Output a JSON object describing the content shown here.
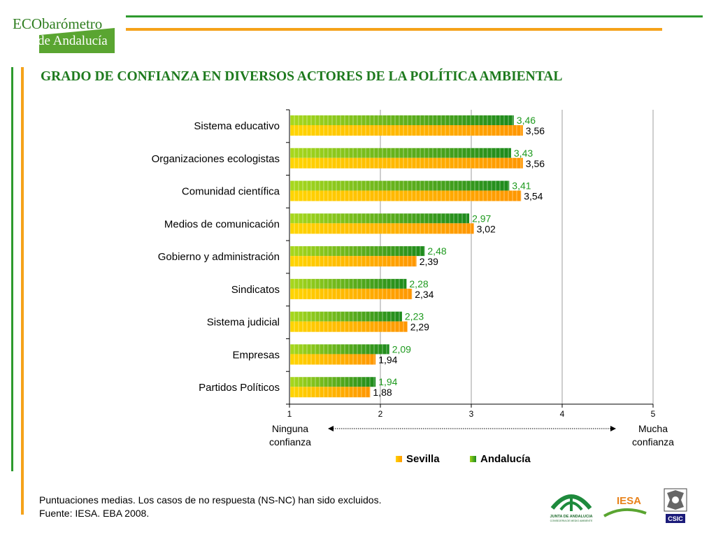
{
  "header": {
    "logo_line1_a": "ECO",
    "logo_line1_b": "barómetro",
    "logo_line2": "de Andalucía"
  },
  "chart_data": {
    "type": "bar",
    "orientation": "horizontal",
    "title": "GRADO DE CONFIANZA EN DIVERSOS ACTORES DE LA POLÍTICA AMBIENTAL",
    "categories": [
      "Sistema educativo",
      "Organizaciones ecologistas",
      "Comunidad científica",
      "Medios de comunicación",
      "Gobierno y administración",
      "Sindicatos",
      "Sistema judicial",
      "Empresas",
      "Partidos Políticos"
    ],
    "series": [
      {
        "name": "Andalucía",
        "color": "#2e9a2e",
        "values": [
          3.46,
          3.43,
          3.41,
          2.97,
          2.48,
          2.28,
          2.23,
          2.09,
          1.94
        ],
        "labels": [
          "3,46",
          "3,43",
          "3,41",
          "2,97",
          "2,48",
          "2,28",
          "2,23",
          "2,09",
          "1,94"
        ]
      },
      {
        "name": "Sevilla",
        "color": "#ffa500",
        "values": [
          3.56,
          3.56,
          3.54,
          3.02,
          2.39,
          2.34,
          2.29,
          1.94,
          1.88
        ],
        "labels": [
          "3,56",
          "3,56",
          "3,54",
          "3,02",
          "2,39",
          "2,34",
          "2,29",
          "1,94",
          "1,88"
        ]
      }
    ],
    "xlim": [
      1,
      5
    ],
    "xticks": [
      "1",
      "2",
      "3",
      "4",
      "5"
    ],
    "x_min_label": "Ninguna confianza",
    "x_max_label": "Mucha confianza",
    "grid": true,
    "legend": {
      "position": "bottom",
      "entries": [
        "Sevilla",
        "Andalucía"
      ]
    }
  },
  "scale": {
    "min_label_line1": "Ninguna",
    "min_label_line2": "confianza",
    "max_label_line1": "Mucha",
    "max_label_line2": "confianza"
  },
  "legend": {
    "sevilla": "Sevilla",
    "andalucia": "Andalucía"
  },
  "footnote": {
    "line1": "Puntuaciones medias. Los casos de no respuesta (NS-NC) han sido excluidos.",
    "line2": "Fuente: IESA. EBA 2008."
  },
  "logos": {
    "junta_line1": "JUNTA DE ANDALUCIA",
    "junta_line2": "CONSEJERIA DE MEDIO AMBIENTE",
    "iesa": "IESA",
    "csic": "CSIC"
  }
}
